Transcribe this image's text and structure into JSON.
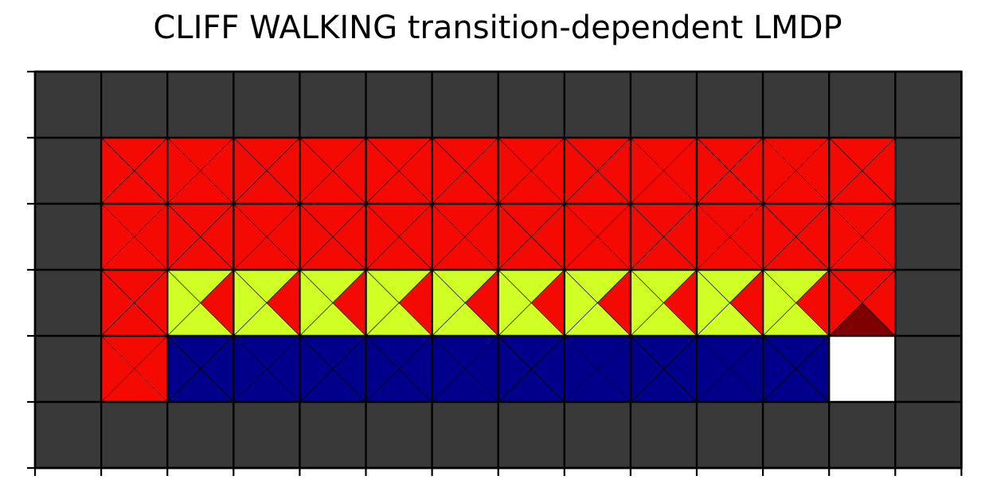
{
  "title": "CLIFF WALKING transition-dependent LMDP",
  "grid": {
    "columns": 14,
    "rows": 6,
    "show_cell_diagonals": true,
    "colors": {
      "wall": "#393939",
      "red": "#f50a03",
      "yellow": "#cfff25",
      "blue": "#00008a",
      "goal": "#ffffff",
      "dark_red": "#7e0000",
      "grid_line": "#000000"
    },
    "cells": [
      [
        "wall",
        "wall",
        "wall",
        "wall",
        "wall",
        "wall",
        "wall",
        "wall",
        "wall",
        "wall",
        "wall",
        "wall",
        "wall",
        "wall"
      ],
      [
        "wall",
        "red",
        "red",
        "red",
        "red",
        "red",
        "red",
        "red",
        "red",
        "red",
        "red",
        "red",
        "red",
        "wall"
      ],
      [
        "wall",
        "red",
        "red",
        "red",
        "red",
        "red",
        "red",
        "red",
        "red",
        "red",
        "red",
        "red",
        "red",
        "wall"
      ],
      [
        "wall",
        "red",
        "yellow",
        "yellow",
        "yellow",
        "yellow",
        "yellow",
        "yellow",
        "yellow",
        "yellow",
        "yellow",
        "yellow",
        "red",
        "wall"
      ],
      [
        "wall",
        "red",
        "blue",
        "blue",
        "blue",
        "blue",
        "blue",
        "blue",
        "blue",
        "blue",
        "blue",
        "blue",
        "goal",
        "wall"
      ],
      [
        "wall",
        "wall",
        "wall",
        "wall",
        "wall",
        "wall",
        "wall",
        "wall",
        "wall",
        "wall",
        "wall",
        "wall",
        "wall",
        "wall"
      ]
    ],
    "triangle_overrides": [
      {
        "row": 3,
        "col": 2,
        "east": "red"
      },
      {
        "row": 3,
        "col": 3,
        "east": "red"
      },
      {
        "row": 3,
        "col": 4,
        "east": "red"
      },
      {
        "row": 3,
        "col": 5,
        "east": "red"
      },
      {
        "row": 3,
        "col": 6,
        "east": "red"
      },
      {
        "row": 3,
        "col": 7,
        "east": "red"
      },
      {
        "row": 3,
        "col": 8,
        "east": "red"
      },
      {
        "row": 3,
        "col": 9,
        "east": "red"
      },
      {
        "row": 3,
        "col": 10,
        "east": "red"
      },
      {
        "row": 3,
        "col": 11,
        "east": "red"
      },
      {
        "row": 3,
        "col": 12,
        "south": "dark_red"
      }
    ]
  }
}
